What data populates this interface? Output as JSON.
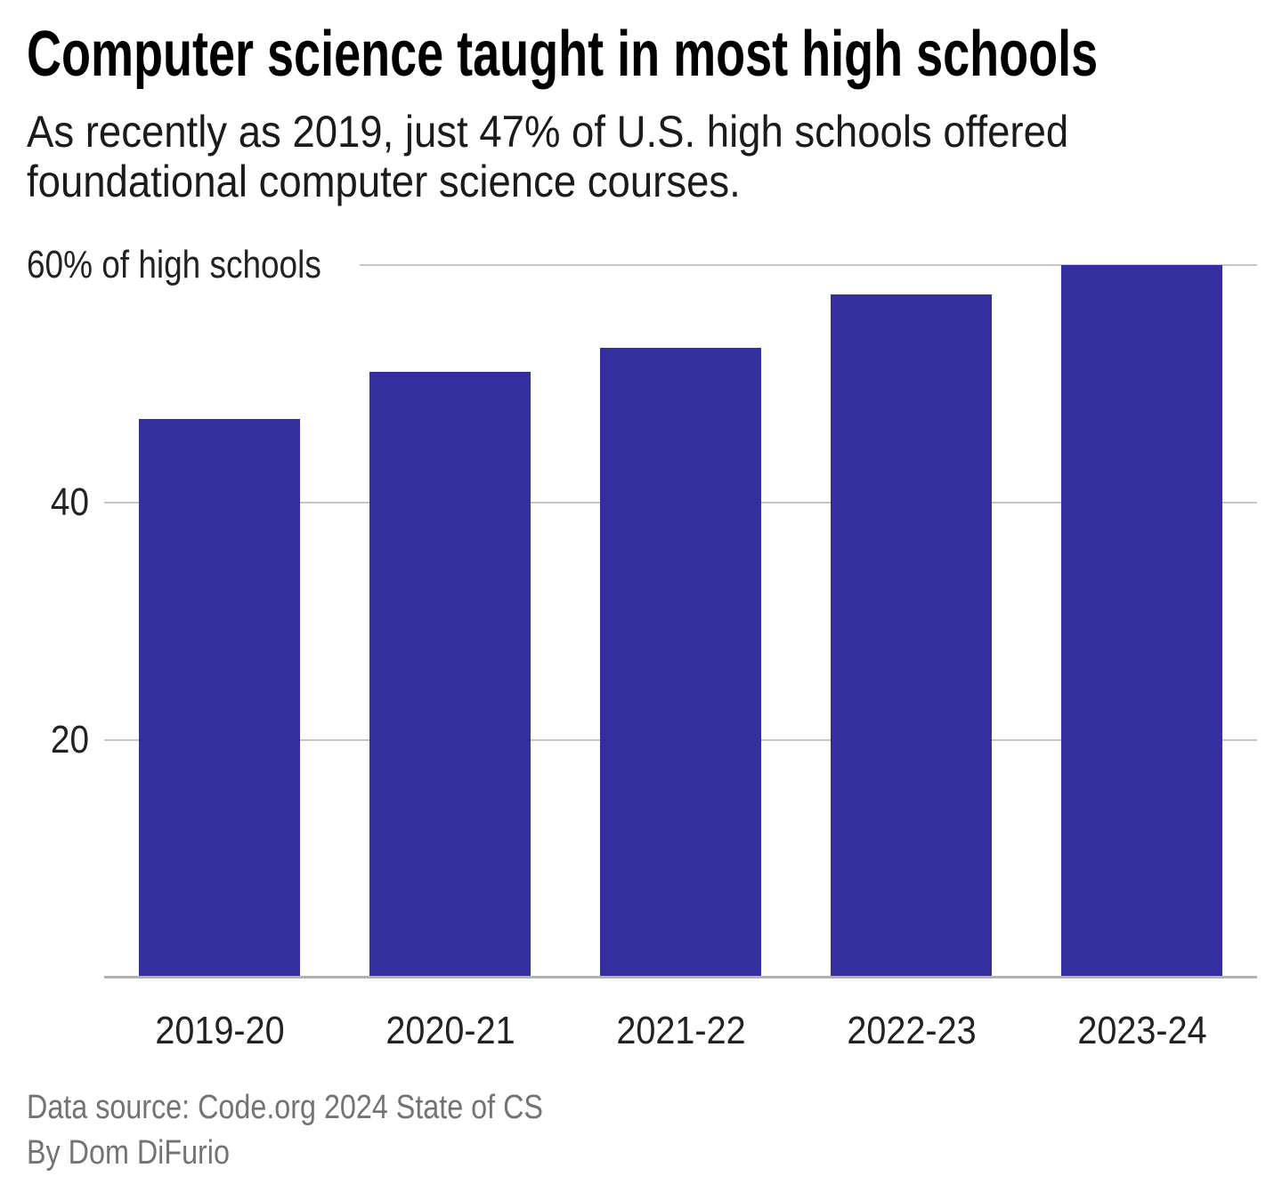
{
  "header": {
    "title": "Computer science taught in most high schools",
    "subtitle_line1": "As recently as 2019, just 47% of U.S. high schools offered",
    "subtitle_line2": "foundational computer science courses."
  },
  "chart_data": {
    "type": "bar",
    "title": "Computer science taught in most high schools",
    "subtitle": "As recently as 2019, just 47% of U.S. high schools offered foundational computer science courses.",
    "categories": [
      "2019-20",
      "2020-21",
      "2021-22",
      "2022-23",
      "2023-24"
    ],
    "values": [
      47,
      51,
      53,
      57.5,
      60
    ],
    "xlabel": "",
    "ylabel": "% of high schools",
    "ylim": [
      0,
      60
    ],
    "y_ticks": [
      20,
      40
    ],
    "top_tick": {
      "value": 60,
      "label": "60% of high schools"
    },
    "grid": "horizontal",
    "legend": "none",
    "bar_color": "#332f9e",
    "gridline_color": "#c5c5c5",
    "axis_color": "#b2b2b2",
    "tick_label_color": "#222222"
  },
  "footer": {
    "source": "Data source: Code.org 2024 State of CS",
    "byline": "By Dom DiFurio"
  }
}
